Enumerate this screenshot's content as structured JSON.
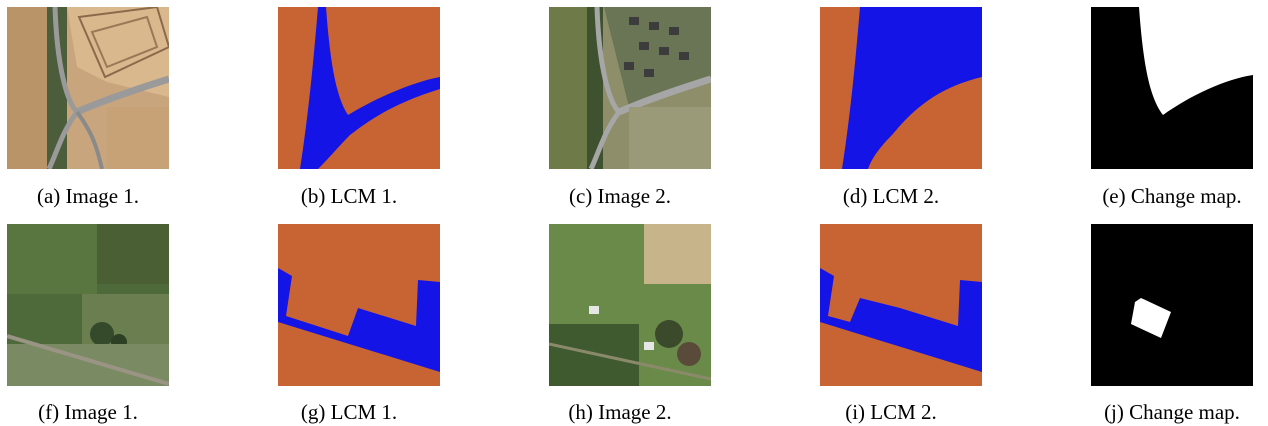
{
  "colors": {
    "lcm_orange": "#c86434",
    "lcm_blue": "#1414e6",
    "change_black": "#000000",
    "change_white": "#ffffff"
  },
  "rows": [
    {
      "panels": [
        {
          "kind": "aerial-photo",
          "caption": "(a) Image 1."
        },
        {
          "kind": "land-cover-map",
          "caption": "(b) LCM 1."
        },
        {
          "kind": "aerial-photo",
          "caption": "(c) Image 2."
        },
        {
          "kind": "land-cover-map",
          "caption": "(d) LCM 2."
        },
        {
          "kind": "change-map",
          "caption": "(e) Change map."
        }
      ]
    },
    {
      "panels": [
        {
          "kind": "aerial-photo",
          "caption": "(f) Image 1."
        },
        {
          "kind": "land-cover-map",
          "caption": "(g) LCM 1."
        },
        {
          "kind": "aerial-photo",
          "caption": "(h) Image 2."
        },
        {
          "kind": "land-cover-map",
          "caption": "(i) LCM 2."
        },
        {
          "kind": "change-map",
          "caption": "(j) Change map."
        }
      ]
    }
  ]
}
